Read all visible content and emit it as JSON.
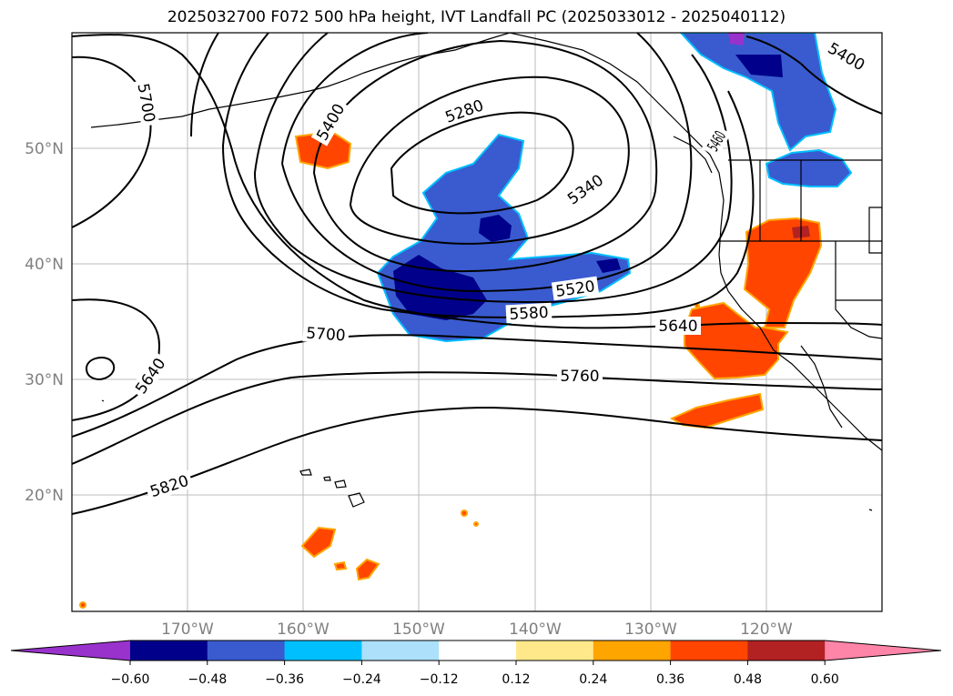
{
  "title": "2025032700 F072 500 hPa height, IVT Landfall PC (2025033012 - 2025040112)",
  "map": {
    "lon_range": [
      -180,
      -110
    ],
    "lat_range": [
      10,
      60
    ],
    "lat_ticks": [
      "20°N",
      "30°N",
      "40°N",
      "50°N"
    ],
    "lon_ticks": [
      "170°W",
      "160°W",
      "150°W",
      "140°W",
      "130°W",
      "120°W"
    ],
    "gridlines": true,
    "contour_labels": [
      "5280",
      "5340",
      "5400",
      "5400",
      "5460",
      "5520",
      "5580",
      "5640",
      "5640",
      "5700",
      "5700",
      "5760",
      "5820"
    ]
  },
  "colorbar": {
    "ticks": [
      "−0.60",
      "−0.48",
      "−0.36",
      "−0.24",
      "−0.12",
      "0.12",
      "0.24",
      "0.36",
      "0.48",
      "0.60"
    ],
    "colors": [
      "#9932CC",
      "#00008B",
      "#3A5BCF",
      "#00BFFF",
      "#ADE0FA",
      "#FFFFFF",
      "#FFE88A",
      "#FFA500",
      "#FF4500",
      "#B22222",
      "#FF85A8"
    ],
    "extend": "both"
  }
}
